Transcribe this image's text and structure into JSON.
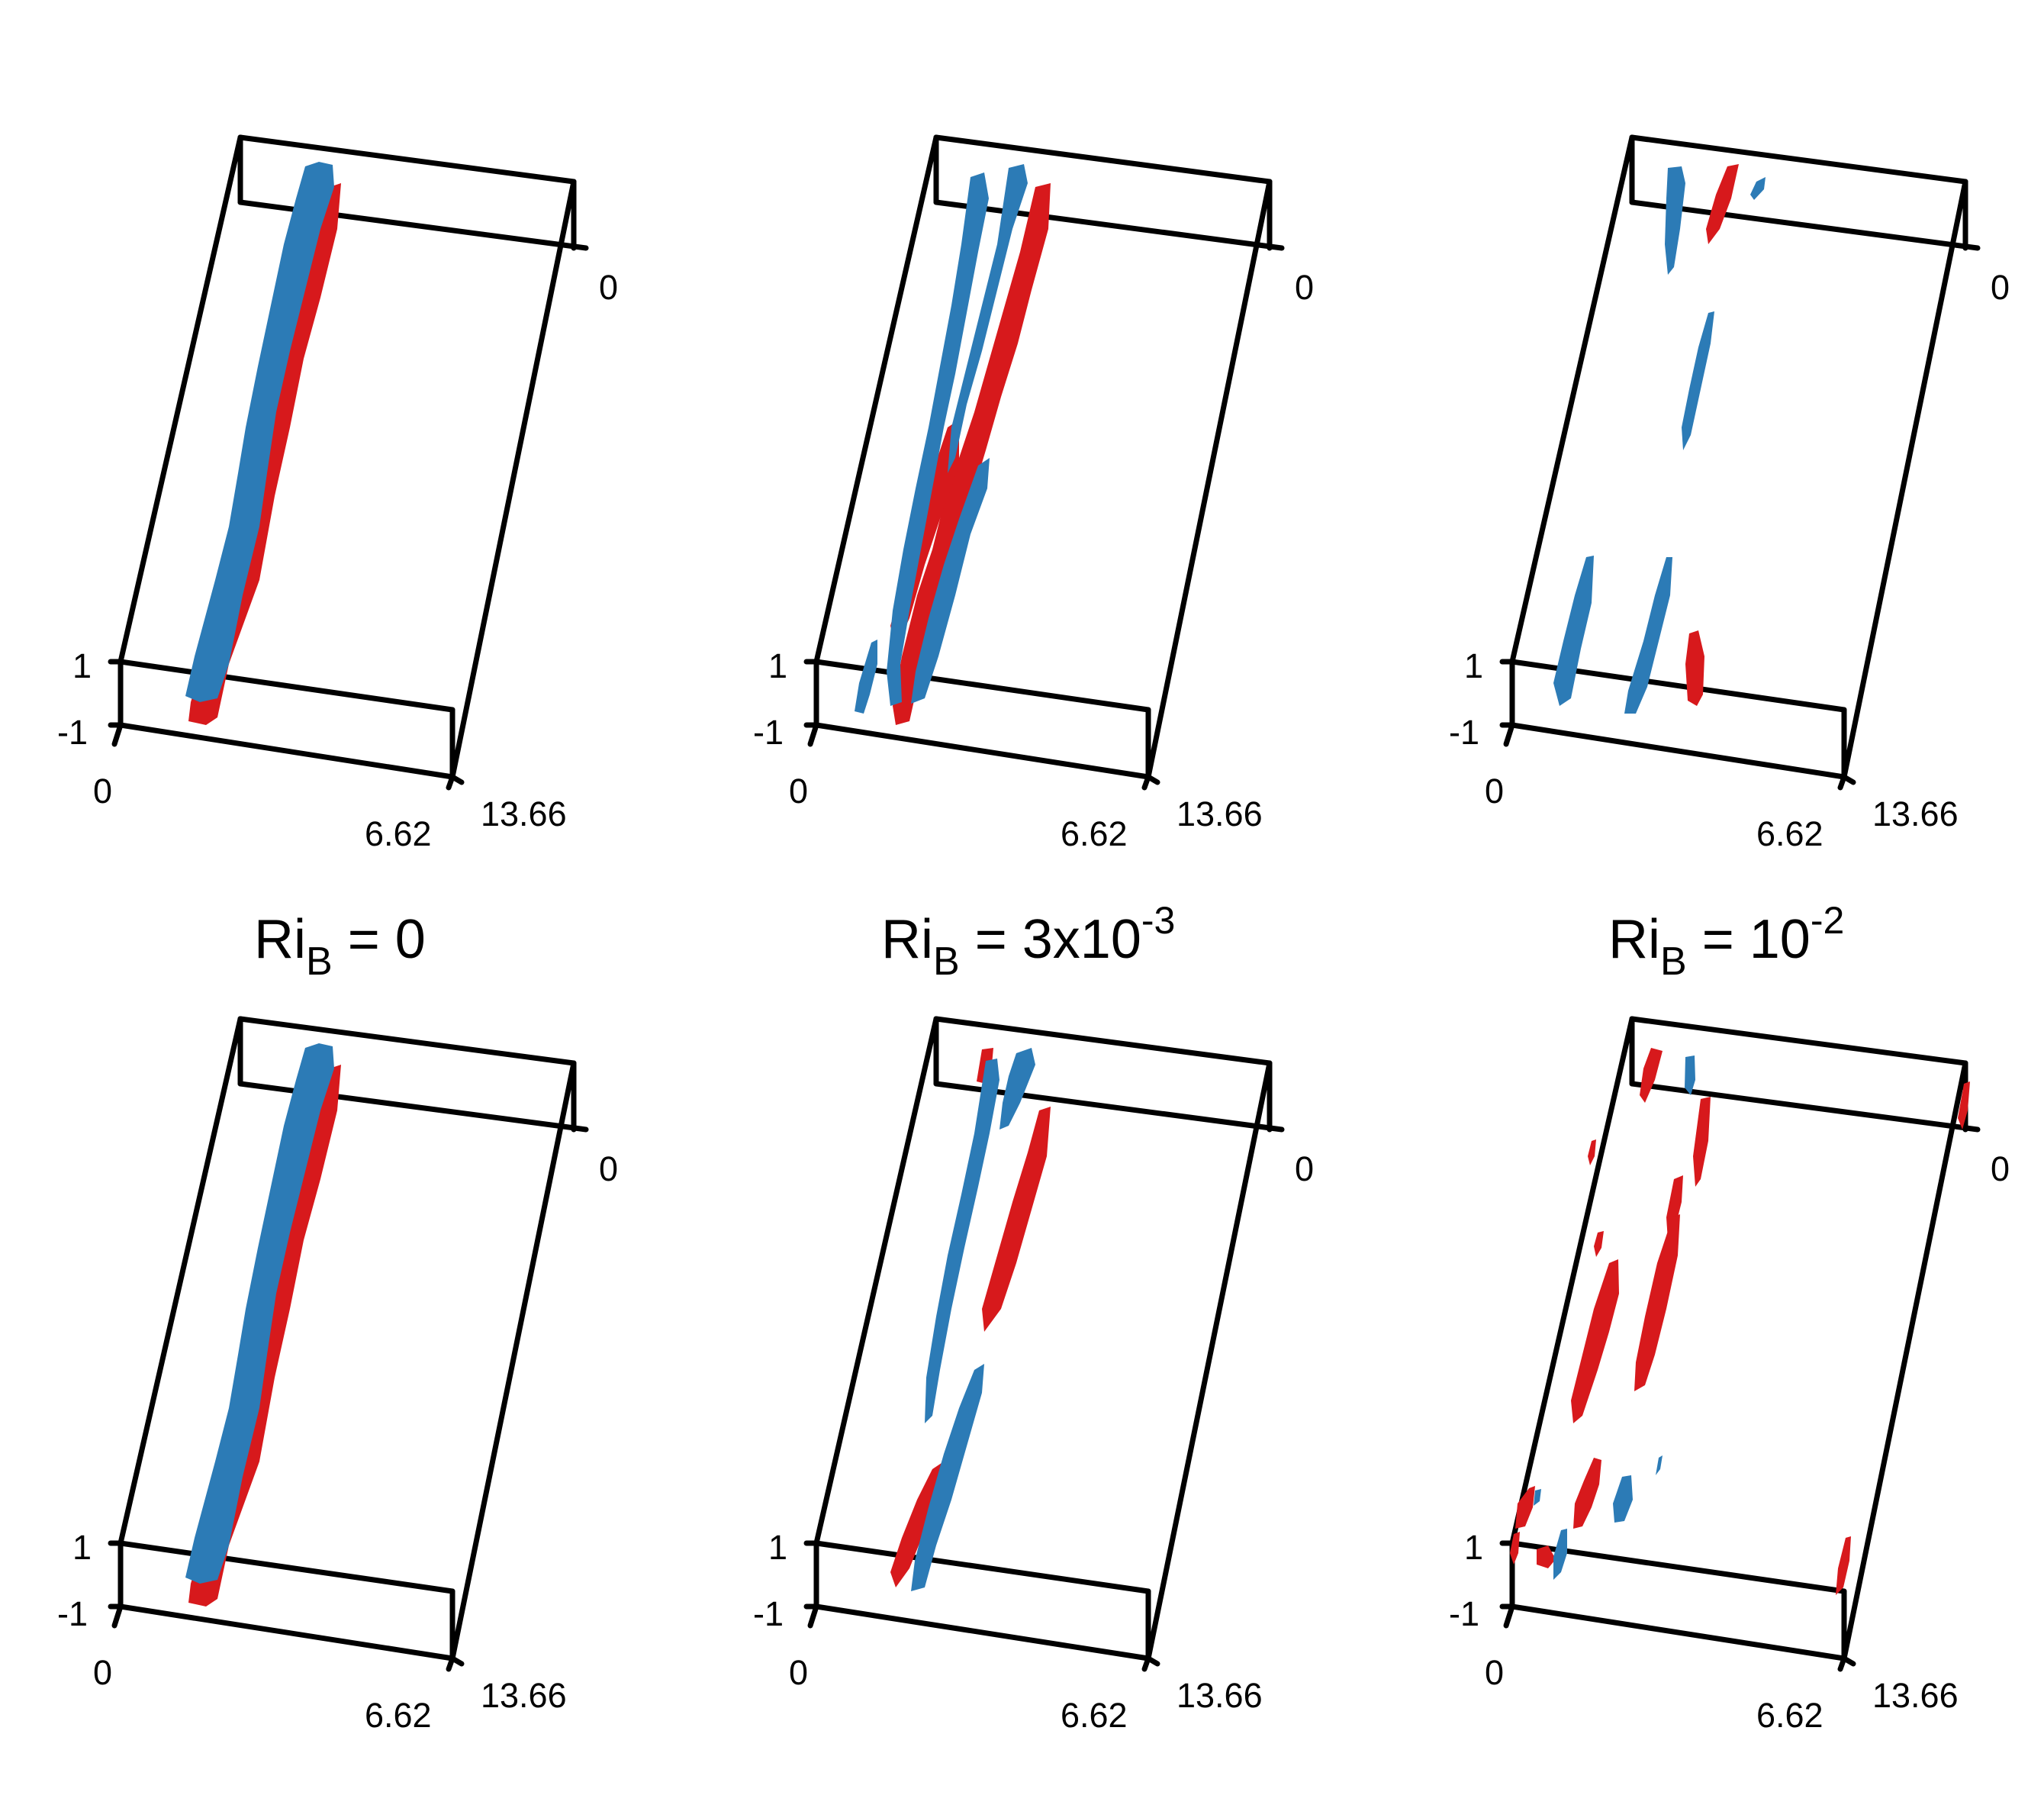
{
  "figure": {
    "colors": {
      "positive": "#d7191c",
      "negative": "#2c7bb6",
      "frame": "#000000"
    },
    "axis_ticks": {
      "z_top": "1",
      "z_bottom": "-1",
      "x_start": "0",
      "x_end": "6.62",
      "y_start": "0",
      "y_end": "13.66"
    },
    "columns": [
      {
        "title_main": "Ri",
        "title_sub": "B",
        "title_rest": " = 0",
        "title_sup": ""
      },
      {
        "title_main": "Ri",
        "title_sub": "B",
        "title_rest": " = 3x10",
        "title_sup": "-3"
      },
      {
        "title_main": "Ri",
        "title_sub": "B",
        "title_rest": " = 10",
        "title_sup": "-2"
      }
    ],
    "panels": [
      {
        "row": "top",
        "column": 0
      },
      {
        "row": "top",
        "column": 1
      },
      {
        "row": "top",
        "column": 2
      },
      {
        "row": "bottom",
        "column": 0
      },
      {
        "row": "bottom",
        "column": 1
      },
      {
        "row": "bottom",
        "column": 2
      }
    ]
  }
}
